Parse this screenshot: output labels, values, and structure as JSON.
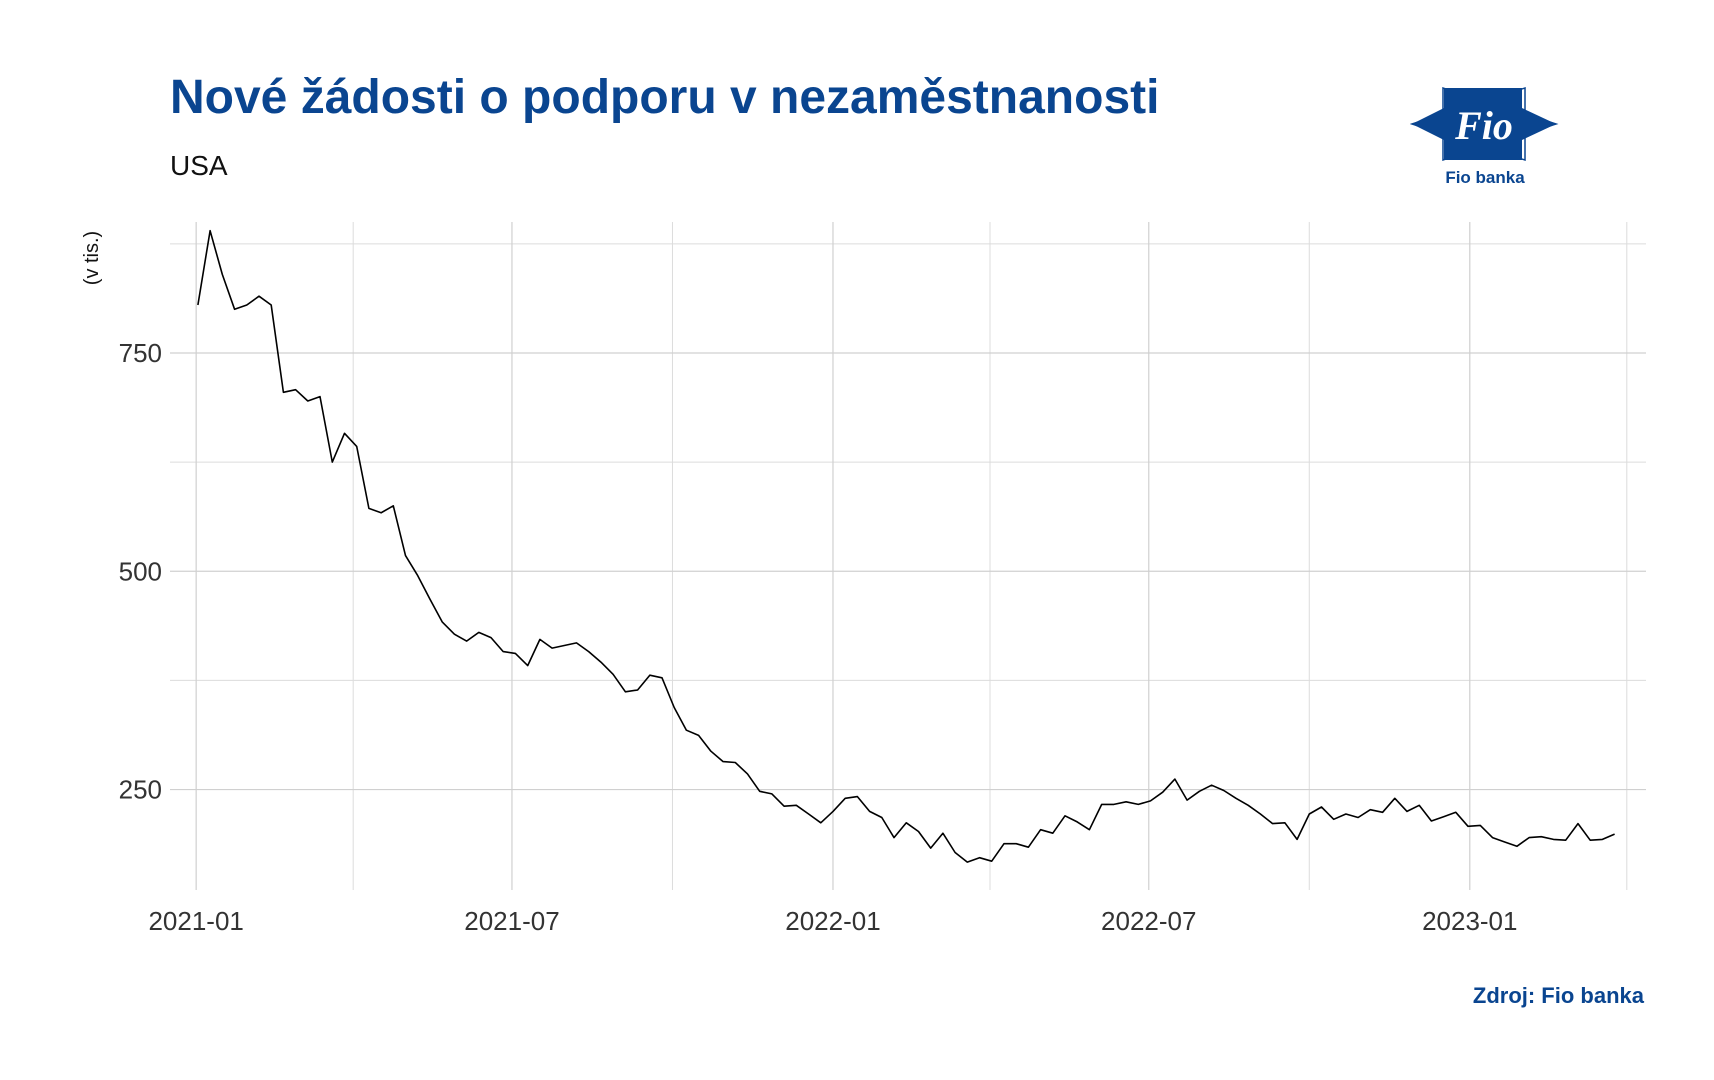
{
  "header": {
    "title": "Nové žádosti o podporu v nezaměstnanosti",
    "subtitle": "USA"
  },
  "logo": {
    "mark_text": "Fio",
    "caption": "Fio banka",
    "color": "#0a4590"
  },
  "footer": {
    "source": "Zdroj: Fio banka"
  },
  "chart_data": {
    "type": "line",
    "title": "Nové žádosti o podporu v nezaměstnanosti",
    "subtitle": "USA",
    "xlabel": "",
    "ylabel": "(v tis.)",
    "ylim": [
      135,
      900
    ],
    "xlim": [
      "2020-12-17",
      "2023-04-12"
    ],
    "grid": true,
    "line_color": "#000000",
    "y_ticks": [
      250,
      500,
      750
    ],
    "y_minor_ticks": [
      375,
      625,
      875
    ],
    "x_ticks": [
      {
        "date": "2021-01-01",
        "label": "2021-01"
      },
      {
        "date": "2021-07-01",
        "label": "2021-07"
      },
      {
        "date": "2022-01-01",
        "label": "2022-01"
      },
      {
        "date": "2022-07-01",
        "label": "2022-07"
      },
      {
        "date": "2023-01-01",
        "label": "2023-01"
      }
    ],
    "x_minor_ticks": [
      "2021-04-01",
      "2021-10-01",
      "2022-04-01",
      "2022-10-01",
      "2023-04-01"
    ],
    "series": [
      {
        "x": [
          "2021-01-02",
          "2021-01-09",
          "2021-01-16",
          "2021-01-23",
          "2021-01-30",
          "2021-02-06",
          "2021-02-13",
          "2021-02-20",
          "2021-02-27",
          "2021-03-06",
          "2021-03-13",
          "2021-03-20",
          "2021-03-27",
          "2021-04-03",
          "2021-04-10",
          "2021-04-17",
          "2021-04-24",
          "2021-05-01",
          "2021-05-08",
          "2021-05-15",
          "2021-05-22",
          "2021-05-29",
          "2021-06-05",
          "2021-06-12",
          "2021-06-19",
          "2021-06-26",
          "2021-07-03",
          "2021-07-10",
          "2021-07-17",
          "2021-07-24",
          "2021-07-31",
          "2021-08-07",
          "2021-08-14",
          "2021-08-21",
          "2021-08-28",
          "2021-09-04",
          "2021-09-11",
          "2021-09-18",
          "2021-09-25",
          "2021-10-02",
          "2021-10-09",
          "2021-10-16",
          "2021-10-23",
          "2021-10-30",
          "2021-11-06",
          "2021-11-13",
          "2021-11-20",
          "2021-11-27",
          "2021-12-04",
          "2021-12-11",
          "2021-12-18",
          "2021-12-25",
          "2022-01-01",
          "2022-01-08",
          "2022-01-15",
          "2022-01-22",
          "2022-01-29",
          "2022-02-05",
          "2022-02-12",
          "2022-02-19",
          "2022-02-26",
          "2022-03-05",
          "2022-03-12",
          "2022-03-19",
          "2022-03-26",
          "2022-04-02",
          "2022-04-09",
          "2022-04-16",
          "2022-04-23",
          "2022-04-30",
          "2022-05-07",
          "2022-05-14",
          "2022-05-21",
          "2022-05-28",
          "2022-06-04",
          "2022-06-11",
          "2022-06-18",
          "2022-06-25",
          "2022-07-02",
          "2022-07-09",
          "2022-07-16",
          "2022-07-23",
          "2022-07-30",
          "2022-08-06",
          "2022-08-13",
          "2022-08-20",
          "2022-08-27",
          "2022-09-03",
          "2022-09-10",
          "2022-09-17",
          "2022-09-24",
          "2022-10-01",
          "2022-10-08",
          "2022-10-15",
          "2022-10-22",
          "2022-10-29",
          "2022-11-05",
          "2022-11-12",
          "2022-11-19",
          "2022-11-26",
          "2022-12-03",
          "2022-12-10",
          "2022-12-17",
          "2022-12-24",
          "2022-12-31",
          "2023-01-07",
          "2023-01-14",
          "2023-01-21",
          "2023-01-28",
          "2023-02-04",
          "2023-02-11",
          "2023-02-18",
          "2023-02-25",
          "2023-03-04",
          "2023-03-11",
          "2023-03-18",
          "2023-03-25"
        ],
        "values": [
          805,
          890,
          840,
          800,
          805,
          815,
          805,
          705,
          708,
          695,
          700,
          625,
          658,
          643,
          572,
          567,
          575,
          518,
          495,
          468,
          442,
          428,
          420,
          430,
          424,
          408,
          406,
          392,
          422,
          412,
          415,
          418,
          408,
          396,
          382,
          362,
          364,
          381,
          378,
          344,
          318,
          312,
          294,
          282,
          281,
          268,
          248,
          245,
          231,
          232,
          222,
          212,
          225,
          240,
          242,
          225,
          218,
          195,
          212,
          202,
          183,
          200,
          178,
          167,
          172,
          168,
          188,
          188,
          184,
          204,
          200,
          220,
          213,
          204,
          233,
          233,
          236,
          233,
          237,
          247,
          262,
          238,
          248,
          255,
          249,
          240,
          232,
          222,
          211,
          212,
          193,
          222,
          230,
          216,
          222,
          218,
          227,
          224,
          240,
          225,
          232,
          214,
          219,
          224,
          208,
          209,
          195,
          190,
          185,
          195,
          196,
          193,
          192,
          211,
          192,
          193,
          199
        ]
      }
    ]
  }
}
